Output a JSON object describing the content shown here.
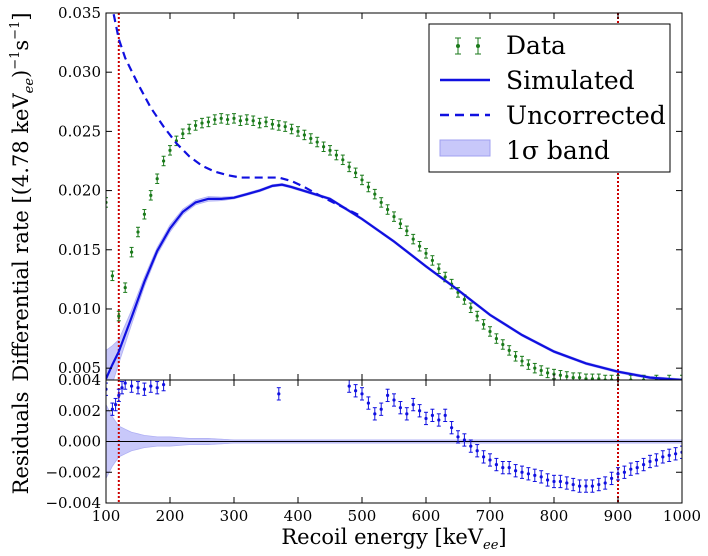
{
  "chart_data": [
    {
      "type": "line",
      "panel": "main",
      "ylabel": "Differential rate [(4.78 keV",
      "ylabel_sub": "ee",
      "ylabel_tail": ")",
      "ylabel_exp1": "−1",
      "ylabel_s": "s",
      "ylabel_exp2": "−1",
      "ylabel_close": "]",
      "xlim": [
        100,
        1000
      ],
      "ylim": [
        0.004,
        0.035
      ],
      "yticks": [
        "0.004",
        "0.005",
        "0.010",
        "0.015",
        "0.020",
        "0.025",
        "0.030",
        "0.035"
      ],
      "ytick_values": [
        0.004,
        0.005,
        0.01,
        0.015,
        0.02,
        0.025,
        0.03,
        0.035
      ],
      "vlines": [
        120,
        900
      ],
      "colors": {
        "data": "#1a7a1a",
        "simulated": "#1010e0",
        "band": "#c8c8fa",
        "vline": "#cc0000"
      },
      "legend": {
        "placement": "top-right",
        "entries": [
          {
            "label": "Data",
            "style": "errorbar"
          },
          {
            "label": "Simulated",
            "style": "solid"
          },
          {
            "label": "Uncorrected",
            "style": "dashed"
          },
          {
            "label": "1σ band",
            "style": "band"
          }
        ]
      },
      "series": [
        {
          "name": "Simulated",
          "x": [
            100,
            110,
            120,
            140,
            160,
            180,
            200,
            220,
            240,
            260,
            280,
            300,
            320,
            340,
            360,
            375,
            390,
            420,
            450,
            500,
            550,
            600,
            650,
            700,
            750,
            800,
            850,
            900,
            950,
            1000
          ],
          "y": [
            0.0041,
            0.0053,
            0.0064,
            0.0093,
            0.0123,
            0.0149,
            0.0168,
            0.0182,
            0.019,
            0.0193,
            0.0193,
            0.0194,
            0.0197,
            0.02,
            0.0204,
            0.0205,
            0.0203,
            0.0198,
            0.0193,
            0.0176,
            0.0157,
            0.0136,
            0.0116,
            0.0095,
            0.0078,
            0.0064,
            0.0054,
            0.0047,
            0.0042,
            0.004
          ]
        },
        {
          "name": "Uncorrected",
          "x": [
            112,
            120,
            130,
            150,
            170,
            190,
            210,
            230,
            250,
            270,
            290,
            310,
            330,
            350,
            370,
            390,
            410,
            440,
            470,
            500
          ],
          "y": [
            0.0349,
            0.0328,
            0.0312,
            0.029,
            0.027,
            0.0254,
            0.024,
            0.0229,
            0.0221,
            0.0216,
            0.0213,
            0.0211,
            0.0211,
            0.0211,
            0.0211,
            0.0208,
            0.0203,
            0.0194,
            0.0186,
            0.0178
          ]
        },
        {
          "name": "Data",
          "x": [
            100,
            110,
            120,
            130,
            140,
            150,
            160,
            170,
            180,
            190,
            200,
            210,
            220,
            230,
            240,
            250,
            260,
            270,
            280,
            290,
            300,
            310,
            320,
            330,
            340,
            350,
            360,
            370,
            380,
            390,
            400,
            410,
            420,
            430,
            440,
            450,
            460,
            470,
            480,
            490,
            500,
            510,
            520,
            530,
            540,
            550,
            560,
            570,
            580,
            590,
            600,
            610,
            620,
            630,
            640,
            650,
            660,
            670,
            680,
            690,
            700,
            710,
            720,
            730,
            740,
            750,
            760,
            770,
            780,
            790,
            800,
            810,
            820,
            830,
            840,
            850,
            860,
            870,
            880,
            890,
            900,
            920,
            940,
            960,
            980,
            1000
          ],
          "y": [
            0.019,
            0.0128,
            0.0094,
            0.0118,
            0.0148,
            0.0165,
            0.018,
            0.0196,
            0.021,
            0.0225,
            0.0234,
            0.0242,
            0.0248,
            0.0252,
            0.0255,
            0.0257,
            0.0258,
            0.026,
            0.0261,
            0.026,
            0.0261,
            0.0259,
            0.026,
            0.0259,
            0.0257,
            0.0258,
            0.0256,
            0.0255,
            0.0254,
            0.0252,
            0.025,
            0.0247,
            0.0244,
            0.0241,
            0.0237,
            0.0234,
            0.023,
            0.0226,
            0.022,
            0.0215,
            0.0209,
            0.0203,
            0.0197,
            0.019,
            0.0184,
            0.0178,
            0.0172,
            0.0166,
            0.0159,
            0.0153,
            0.0147,
            0.0141,
            0.0134,
            0.0127,
            0.0121,
            0.0114,
            0.0108,
            0.0101,
            0.0094,
            0.0087,
            0.0081,
            0.0075,
            0.007,
            0.0065,
            0.006,
            0.0056,
            0.0053,
            0.005,
            0.0048,
            0.0046,
            0.0045,
            0.0044,
            0.0043,
            0.0042,
            0.0042,
            0.0041,
            0.0041,
            0.0041,
            0.004,
            0.004,
            0.004,
            0.004,
            0.004,
            0.004,
            0.004,
            0.004
          ],
          "yerr": 0.0004
        }
      ],
      "band": {
        "x": [
          100,
          110,
          120,
          140,
          160,
          180,
          200,
          230,
          260,
          300,
          350,
          400,
          500,
          600,
          700,
          800,
          900,
          1000
        ],
        "halfwidth": [
          0.0024,
          0.0016,
          0.001,
          0.0006,
          0.0004,
          0.0003,
          0.0003,
          0.0002,
          0.0002,
          0.0001,
          0.0001,
          0.0001,
          0.0001,
          0.0001,
          0.0001,
          0.0001,
          0.0001,
          0.0001
        ]
      }
    },
    {
      "type": "scatter",
      "panel": "residuals",
      "ylabel": "Residuals",
      "xlabel": "Recoil energy [keV",
      "xlabel_sub": "ee",
      "xlabel_close": "]",
      "xlim": [
        100,
        1000
      ],
      "ylim": [
        -0.004,
        0.004
      ],
      "xticks": [
        "100",
        "200",
        "300",
        "400",
        "500",
        "600",
        "700",
        "800",
        "900",
        "1000"
      ],
      "xtick_values": [
        100,
        200,
        300,
        400,
        500,
        600,
        700,
        800,
        900,
        1000
      ],
      "yticks": [
        "−0.004",
        "−0.002",
        "0.000",
        "0.002",
        "0.004"
      ],
      "ytick_values": [
        -0.004,
        -0.002,
        0.0,
        0.002,
        0.004
      ],
      "series": [
        {
          "name": "Residuals",
          "x": [
            100,
            110,
            115,
            120,
            125,
            130,
            140,
            150,
            160,
            170,
            180,
            190,
            370,
            480,
            490,
            500,
            510,
            520,
            530,
            540,
            550,
            560,
            570,
            580,
            590,
            600,
            610,
            620,
            630,
            640,
            650,
            660,
            670,
            680,
            690,
            700,
            710,
            720,
            730,
            740,
            750,
            760,
            770,
            780,
            790,
            800,
            810,
            820,
            830,
            840,
            850,
            860,
            870,
            880,
            890,
            900,
            910,
            920,
            930,
            940,
            950,
            960,
            970,
            980,
            990,
            1000
          ],
          "y": [
            0.0034,
            0.0021,
            0.0024,
            0.003,
            0.0035,
            0.0038,
            0.0036,
            0.0035,
            0.0034,
            0.0036,
            0.0035,
            0.0037,
            0.0031,
            0.0036,
            0.0033,
            0.0031,
            0.0025,
            0.0018,
            0.0021,
            0.003,
            0.0027,
            0.0022,
            0.0018,
            0.0024,
            0.002,
            0.0015,
            0.0017,
            0.0014,
            0.0017,
            0.0009,
            0.0003,
            0.0001,
            -0.0003,
            -0.0006,
            -0.001,
            -0.0012,
            -0.0015,
            -0.0017,
            -0.0017,
            -0.0019,
            -0.002,
            -0.0021,
            -0.0022,
            -0.0023,
            -0.0025,
            -0.0026,
            -0.0026,
            -0.0027,
            -0.0028,
            -0.0029,
            -0.0029,
            -0.0029,
            -0.0028,
            -0.0027,
            -0.0024,
            -0.0021,
            -0.002,
            -0.0018,
            -0.0017,
            -0.0015,
            -0.0013,
            -0.0012,
            -0.001,
            -0.0009,
            -0.0008,
            -0.0007
          ],
          "yerr": 0.0004
        }
      ],
      "band": {
        "x": [
          100,
          110,
          120,
          140,
          160,
          180,
          200,
          230,
          260,
          300,
          350,
          400,
          500,
          600,
          700,
          800,
          900,
          1000
        ],
        "halfwidth": [
          0.0024,
          0.0016,
          0.001,
          0.0006,
          0.0004,
          0.0003,
          0.0003,
          0.0002,
          0.0002,
          0.0001,
          0.0001,
          0.0001,
          0.0001,
          0.0001,
          0.0001,
          0.0001,
          0.0001,
          0.0001
        ]
      },
      "hline": 0.0,
      "vlines": [
        120,
        900
      ]
    }
  ]
}
